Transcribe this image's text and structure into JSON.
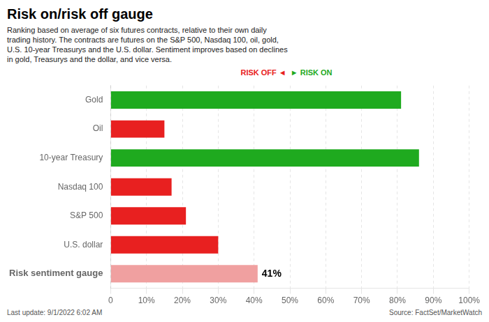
{
  "chart_data": {
    "type": "bar",
    "orientation": "horizontal",
    "title": "Risk on/risk off gauge",
    "subtitle": "Ranking based on average of six futures contracts, relative to their own daily\ntrading history. The contracts are futures on the S&P 500, Nasdaq 100, oil, gold,\nU.S. 10-year Treasurys and the U.S. dollar. Sentiment improves based on declines\nin gold, Treasurys and the dollar, and vice versa.",
    "categories": [
      "Gold",
      "Oil",
      "10-year Treasury",
      "Nasdaq 100",
      "S&P 500",
      "U.S. dollar",
      "Risk sentiment gauge"
    ],
    "values": [
      81,
      15,
      86,
      17,
      21,
      30,
      41
    ],
    "colors": [
      "#1faa1f",
      "#e82020",
      "#1faa1f",
      "#e82020",
      "#e82020",
      "#e82020",
      "#f0a0a0"
    ],
    "xlim": [
      0,
      100
    ],
    "xticks": [
      0,
      {
        "value": 10,
        "label": "10%"
      },
      {
        "value": 20,
        "label": "20%"
      },
      {
        "value": 30,
        "label": "30%"
      },
      {
        "value": 40,
        "label": "40%"
      },
      {
        "value": 50,
        "label": "50%"
      },
      {
        "value": 60,
        "label": "60%"
      },
      {
        "value": 70,
        "label": "70%"
      },
      {
        "value": 80,
        "label": "80%"
      },
      {
        "value": 90,
        "label": "90%"
      },
      {
        "value": 100,
        "label": "100%"
      }
    ],
    "grid": true,
    "annotations": [
      {
        "text": "41%",
        "category": "Risk sentiment gauge",
        "value": 41
      },
      {
        "text": "RISK OFF ◄",
        "color": "#e82020"
      },
      {
        "text": "► RISK ON",
        "color": "#1faa1f"
      }
    ],
    "caption": "Last update: 9/1/2022 6:02 AM",
    "source": "Source: FactSet/MarketWatch"
  }
}
